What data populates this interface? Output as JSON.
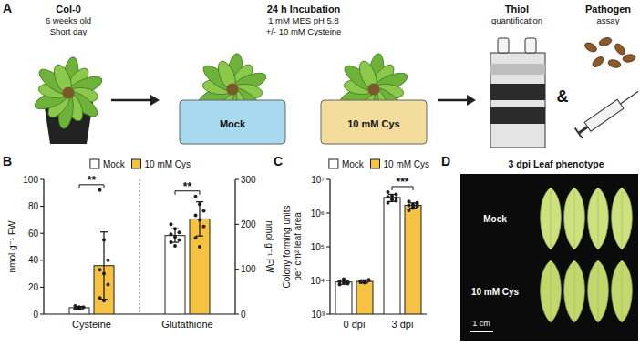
{
  "panel_labels": [
    "A",
    "B",
    "C",
    "D"
  ],
  "panel_a": {
    "steps": [
      {
        "lines": [
          "Col-0",
          "6 weeks old",
          "Short day"
        ]
      },
      {
        "lines": [
          "24 h Incubation",
          "1 mM MES pH 5.8",
          "+/- 10 mM Cysteine"
        ],
        "conditions": [
          "Mock",
          "10 mM Cys"
        ]
      },
      {
        "lines": [
          "Thiol",
          "quantification"
        ]
      },
      {
        "lines": [
          "Pathogen",
          "assay"
        ]
      }
    ],
    "joiner": "&"
  },
  "chart_data": [
    {
      "type": "bar",
      "categories": [
        "Cysteine",
        "Glutathione"
      ],
      "ylabel": "nmol g⁻¹ FW",
      "y2label": "nmol g⁻¹ FW",
      "ylim": [
        0,
        100
      ],
      "yticks": [
        0,
        20,
        40,
        60,
        80,
        100
      ],
      "y2lim": [
        0,
        300
      ],
      "y2ticks": [
        0,
        100,
        200,
        300
      ],
      "legend": "top",
      "series": [
        {
          "name": "Mock",
          "color": "#ffffff",
          "values": [
            4.8,
            null
          ],
          "errors": [
            0.9,
            null
          ],
          "points": [
            [
              4,
              5,
              5,
              6,
              4,
              5,
              4,
              5
            ],
            null
          ]
        },
        {
          "name": "10 mM Cys",
          "color": "#f5c242",
          "values": [
            36,
            null
          ],
          "errors": [
            25,
            null
          ],
          "points": [
            [
              92,
              55,
              40,
              33,
              30,
              22,
              12,
              10
            ],
            null
          ]
        },
        {
          "color": "#ffffff",
          "axis": "y2",
          "values": [
            null,
            175
          ],
          "errors": [
            null,
            15
          ],
          "points": [
            null,
            [
              200,
              190,
              182,
              178,
              172,
              165,
              160,
              152
            ]
          ]
        },
        {
          "color": "#f5c242",
          "axis": "y2",
          "values": [
            null,
            212
          ],
          "errors": [
            null,
            38
          ],
          "points": [
            null,
            [
              262,
              245,
              230,
              220,
              210,
              195,
              170,
              150
            ]
          ]
        }
      ],
      "annotations": [
        {
          "x": "Cysteine",
          "text": "**"
        },
        {
          "x": "Glutathione",
          "text": "**"
        }
      ]
    },
    {
      "type": "bar",
      "categories": [
        "0 dpi",
        "3 dpi"
      ],
      "ylabel": [
        "Colony forming units",
        "per cm² leaf area"
      ],
      "log": "y",
      "ylim": [
        1000,
        10000000
      ],
      "yticks": [
        {
          "value": 1000,
          "label": "10³"
        },
        {
          "value": 10000,
          "label": "10⁴"
        },
        {
          "value": 100000,
          "label": "10⁵"
        },
        {
          "value": 1000000,
          "label": "10⁶"
        },
        {
          "value": 10000000,
          "label": "10⁷"
        }
      ],
      "legend": "top",
      "series": [
        {
          "name": "Mock",
          "color": "#ffffff",
          "values": [
            9000,
            2900000
          ],
          "errors": [
            1300,
            700000
          ],
          "points": [
            [
              7500,
              8500,
              9000,
              9500,
              10000,
              8000,
              9200,
              11000,
              8700
            ],
            [
              2000000,
              2500000,
              2800000,
              3000000,
              3200000,
              3600000,
              4200000,
              2600000,
              2300000
            ]
          ]
        },
        {
          "name": "10 mM Cys",
          "color": "#f5c242",
          "values": [
            9400,
            1700000
          ],
          "errors": [
            1000,
            300000
          ],
          "points": [
            [
              8800,
              9300,
              10000,
              9600,
              8500,
              10500,
              9000,
              9200
            ],
            [
              1200000,
              1400000,
              1600000,
              1700000,
              1800000,
              2000000,
              2200000,
              1500000,
              1900000
            ]
          ]
        }
      ],
      "annotations": [
        {
          "x": "3 dpi",
          "text": "***"
        }
      ]
    }
  ],
  "panel_d": {
    "title": "3 dpi Leaf phenotype",
    "rows": [
      "Mock",
      "10 mM Cys"
    ],
    "scale_bar": "1 cm"
  }
}
